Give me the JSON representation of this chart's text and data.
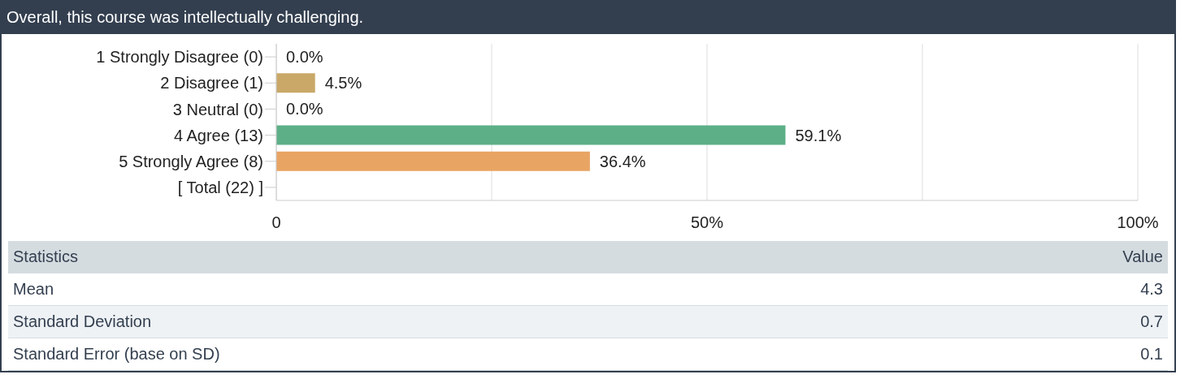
{
  "chart_data": {
    "type": "bar",
    "orientation": "horizontal",
    "title": "Overall, this course was intellectually challenging.",
    "categories": [
      "1 Strongly Disagree (0)",
      "2 Disagree (1)",
      "3 Neutral (0)",
      "4 Agree (13)",
      "5 Strongly Agree (8)",
      "[ Total (22) ]"
    ],
    "values": [
      0,
      4.5,
      0,
      59.1,
      36.4,
      null
    ],
    "colors": [
      "#c9a868",
      "#c9a868",
      "#9fb6cd",
      "#5daf87",
      "#e8a463",
      "#cccccc"
    ],
    "value_labels": [
      "0.0%",
      "4.5%",
      "0.0%",
      "59.1%",
      "36.4%",
      null
    ],
    "xlim": [
      0,
      100
    ],
    "xticks": [
      0,
      {
        "value": 25,
        "label": null
      },
      {
        "value": 50,
        "label": "50%"
      },
      {
        "value": 75,
        "label": null
      },
      {
        "value": 100,
        "label": "100%"
      }
    ],
    "grid": "x",
    "legend": false,
    "annotations": [
      "Statistics",
      "Value",
      "Mean",
      "4.3",
      "Standard Deviation",
      "0.7",
      "Standard Error (base on SD)",
      "0.1"
    ]
  }
}
